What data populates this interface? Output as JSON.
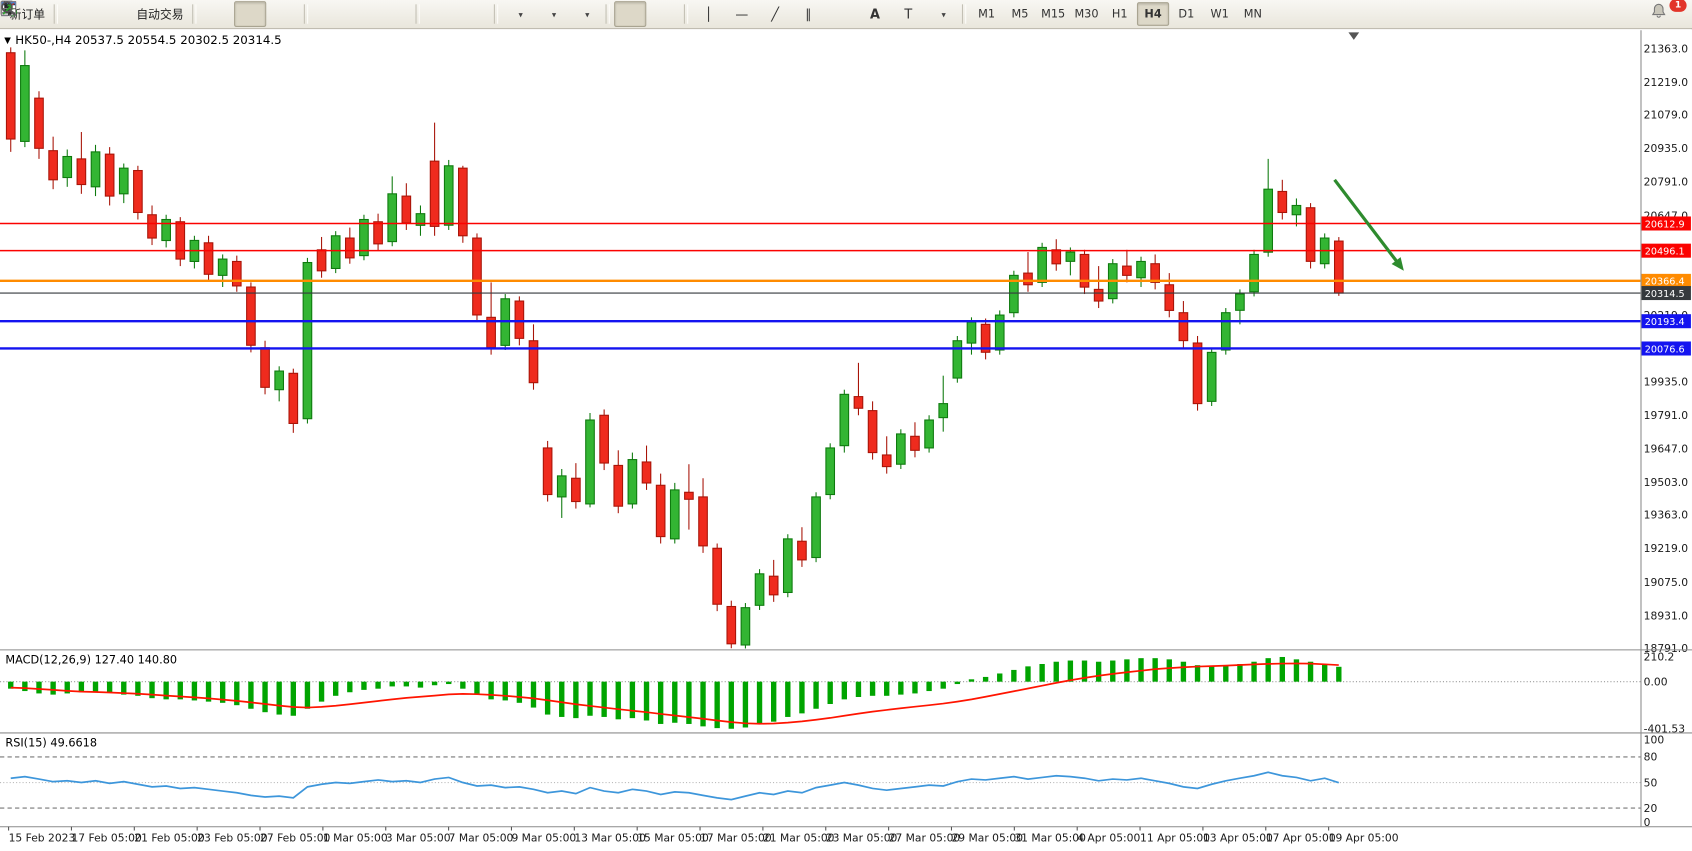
{
  "toolbar": {
    "new_order_label": "新订单",
    "autotrade_label": "自动交易",
    "timeframes": [
      {
        "label": "M1",
        "active": false
      },
      {
        "label": "M5",
        "active": false
      },
      {
        "label": "M15",
        "active": false
      },
      {
        "label": "M30",
        "active": false
      },
      {
        "label": "H1",
        "active": false
      },
      {
        "label": "H4",
        "active": true
      },
      {
        "label": "D1",
        "active": false
      },
      {
        "label": "W1",
        "active": false
      },
      {
        "label": "MN",
        "active": false
      }
    ],
    "notification_badge": "1"
  },
  "chart": {
    "title": "HK50-,H4 20537.5 20554.5 20302.5 20314.5",
    "symbol": "HK50-",
    "period": "H4"
  },
  "chart_data": {
    "type": "candlestick",
    "title": "HK50-,H4",
    "ohlc_display": {
      "open": "20537.5",
      "high": "20554.5",
      "low": "20302.5",
      "close": "20314.5"
    },
    "price_axis": {
      "max": 21363.0,
      "min": 18791.0,
      "ticks": [
        "21363.0",
        "21219.0",
        "21079.0",
        "20935.0",
        "20791.0",
        "20647.0",
        "20503.0",
        "20363.0",
        "20219.0",
        "20075.0",
        "19935.0",
        "19791.0",
        "19647.0",
        "19503.0",
        "19363.0",
        "19219.0",
        "19075.0",
        "18931.0",
        "18791.0"
      ]
    },
    "colors": {
      "up": "#33b533",
      "up_border": "#0e7a0e",
      "down": "#ef2b1e",
      "down_border": "#a81408",
      "red_line": "#fb0200",
      "orange_line": "#ff8b00",
      "blue_line": "#1414f0",
      "current_line": "#4a4f54",
      "arrow": "#2e8b2e"
    },
    "horizontal_lines": [
      {
        "price": 20612.9,
        "label": "20612.9",
        "color": "#fb0200",
        "width": 1.4,
        "current": false
      },
      {
        "price": 20496.1,
        "label": "20496.1",
        "color": "#fb0200",
        "width": 1.4,
        "current": false
      },
      {
        "price": 20366.4,
        "label": "20366.4",
        "color": "#ff8b00",
        "width": 2.2,
        "current": false
      },
      {
        "price": 20193.4,
        "label": "20193.4",
        "color": "#1414f0",
        "width": 2.2,
        "current": false
      },
      {
        "price": 20076.6,
        "label": "20076.6",
        "color": "#1414f0",
        "width": 2.2,
        "current": false
      },
      {
        "price": 20314.5,
        "label": "20314.5",
        "color": "#35393d",
        "width": 1.0,
        "current": true
      }
    ],
    "annotations": [
      {
        "type": "arrow",
        "from_bar": 93.7,
        "from_price": 20800,
        "to_bar": 98.6,
        "to_price": 20410,
        "color": "#2e8b2e"
      }
    ],
    "candles": [
      [
        21345,
        21368,
        20920,
        20975
      ],
      [
        20965,
        21355,
        20940,
        21290
      ],
      [
        21150,
        21180,
        20890,
        20935
      ],
      [
        20925,
        20985,
        20760,
        20800
      ],
      [
        20810,
        20930,
        20770,
        20900
      ],
      [
        20890,
        21005,
        20740,
        20780
      ],
      [
        20770,
        20950,
        20730,
        20920
      ],
      [
        20910,
        20940,
        20690,
        20730
      ],
      [
        20740,
        20870,
        20700,
        20850
      ],
      [
        20840,
        20860,
        20630,
        20660
      ],
      [
        20650,
        20690,
        20520,
        20550
      ],
      [
        20540,
        20650,
        20510,
        20630
      ],
      [
        20620,
        20640,
        20430,
        20460
      ],
      [
        20450,
        20560,
        20420,
        20540
      ],
      [
        20530,
        20560,
        20370,
        20395
      ],
      [
        20390,
        20480,
        20340,
        20460
      ],
      [
        20450,
        20475,
        20320,
        20345
      ],
      [
        20340,
        20360,
        20060,
        20090
      ],
      [
        20080,
        20110,
        19880,
        19910
      ],
      [
        19900,
        20000,
        19850,
        19980
      ],
      [
        19970,
        19990,
        19715,
        19755
      ],
      [
        19775,
        20465,
        19755,
        20445
      ],
      [
        20500,
        20555,
        20380,
        20410
      ],
      [
        20420,
        20580,
        20400,
        20560
      ],
      [
        20550,
        20595,
        20440,
        20465
      ],
      [
        20475,
        20650,
        20455,
        20630
      ],
      [
        20620,
        20655,
        20495,
        20525
      ],
      [
        20535,
        20815,
        20515,
        20740
      ],
      [
        20730,
        20785,
        20585,
        20615
      ],
      [
        20605,
        20690,
        20560,
        20655
      ],
      [
        20880,
        21045,
        20560,
        20600
      ],
      [
        20605,
        20885,
        20585,
        20860
      ],
      [
        20850,
        20860,
        20530,
        20560
      ],
      [
        20550,
        20570,
        20190,
        20220
      ],
      [
        20210,
        20360,
        20050,
        20080
      ],
      [
        20090,
        20310,
        20070,
        20290
      ],
      [
        20280,
        20300,
        20090,
        20120
      ],
      [
        20110,
        20180,
        19900,
        19930
      ],
      [
        19650,
        19680,
        19420,
        19450
      ],
      [
        19440,
        19560,
        19350,
        19530
      ],
      [
        19520,
        19585,
        19390,
        19420
      ],
      [
        19410,
        19800,
        19395,
        19770
      ],
      [
        19790,
        19815,
        19555,
        19585
      ],
      [
        19575,
        19640,
        19370,
        19400
      ],
      [
        19410,
        19630,
        19390,
        19600
      ],
      [
        19590,
        19660,
        19470,
        19500
      ],
      [
        19490,
        19540,
        19240,
        19270
      ],
      [
        19260,
        19500,
        19240,
        19470
      ],
      [
        19460,
        19580,
        19300,
        19430
      ],
      [
        19440,
        19520,
        19200,
        19230
      ],
      [
        19220,
        19240,
        18950,
        18980
      ],
      [
        18970,
        18995,
        18791,
        18810
      ],
      [
        18805,
        18985,
        18790,
        18965
      ],
      [
        18975,
        19130,
        18955,
        19110
      ],
      [
        19100,
        19170,
        18990,
        19020
      ],
      [
        19030,
        19280,
        19010,
        19260
      ],
      [
        19250,
        19310,
        19140,
        19170
      ],
      [
        19180,
        19460,
        19160,
        19440
      ],
      [
        19450,
        19670,
        19430,
        19650
      ],
      [
        19660,
        19900,
        19630,
        19880
      ],
      [
        19870,
        20015,
        19790,
        19820
      ],
      [
        19810,
        19850,
        19600,
        19630
      ],
      [
        19620,
        19700,
        19540,
        19570
      ],
      [
        19580,
        19730,
        19560,
        19710
      ],
      [
        19700,
        19760,
        19610,
        19640
      ],
      [
        19650,
        19790,
        19630,
        19770
      ],
      [
        19780,
        19960,
        19720,
        19840
      ],
      [
        19950,
        20130,
        19930,
        20110
      ],
      [
        20100,
        20210,
        20050,
        20190
      ],
      [
        20180,
        20205,
        20030,
        20060
      ],
      [
        20070,
        20240,
        20050,
        20220
      ],
      [
        20230,
        20410,
        20210,
        20390
      ],
      [
        20400,
        20490,
        20320,
        20350
      ],
      [
        20360,
        20530,
        20340,
        20510
      ],
      [
        20500,
        20545,
        20410,
        20440
      ],
      [
        20450,
        20510,
        20390,
        20490
      ],
      [
        20480,
        20500,
        20310,
        20340
      ],
      [
        20330,
        20430,
        20250,
        20280
      ],
      [
        20290,
        20460,
        20270,
        20440
      ],
      [
        20430,
        20500,
        20360,
        20390
      ],
      [
        20380,
        20470,
        20340,
        20450
      ],
      [
        20440,
        20480,
        20330,
        20360
      ],
      [
        20350,
        20400,
        20210,
        20240
      ],
      [
        20230,
        20280,
        20080,
        20110
      ],
      [
        20100,
        20130,
        19810,
        19840
      ],
      [
        19850,
        20080,
        19830,
        20060
      ],
      [
        20070,
        20250,
        20050,
        20230
      ],
      [
        20240,
        20330,
        20180,
        20310
      ],
      [
        20320,
        20500,
        20300,
        20480
      ],
      [
        20490,
        20890,
        20470,
        20760
      ],
      [
        20750,
        20800,
        20630,
        20660
      ],
      [
        20650,
        20720,
        20600,
        20690
      ],
      [
        20680,
        20700,
        20420,
        20450
      ],
      [
        20440,
        20570,
        20420,
        20550
      ],
      [
        20537.5,
        20554.5,
        20302.5,
        20314.5
      ]
    ],
    "time_axis_ticks": [
      "15 Feb 2023",
      "17 Feb 05:00",
      "21 Feb 05:00",
      "23 Feb 05:00",
      "27 Feb 05:00",
      "1 Mar 05:00",
      "3 Mar 05:00",
      "7 Mar 05:00",
      "9 Mar 05:00",
      "13 Mar 05:00",
      "15 Mar 05:00",
      "17 Mar 05:00",
      "21 Mar 05:00",
      "23 Mar 05:00",
      "27 Mar 05:00",
      "29 Mar 05:00",
      "31 Mar 05:00",
      "4 Apr 05:00",
      "11 Apr 05:00",
      "13 Apr 05:00",
      "17 Apr 05:00",
      "19 Apr 05:00"
    ],
    "macd": {
      "label": "MACD(12,26,9) 127.40 140.80",
      "params": "12,26,9",
      "main_value": "127.40",
      "signal_value": "140.80",
      "axis_ticks": [
        "210.2",
        "0.00",
        "-401.53"
      ],
      "axis_max": 210.2,
      "axis_min": -401.53,
      "colors": {
        "histogram": "#00a400",
        "signal": "#ff1400"
      },
      "histogram": [
        -60,
        -80,
        -100,
        -110,
        -100,
        -90,
        -85,
        -95,
        -110,
        -120,
        -140,
        -150,
        -150,
        -160,
        -170,
        -180,
        -200,
        -230,
        -260,
        -280,
        -290,
        -230,
        -170,
        -120,
        -90,
        -70,
        -60,
        -40,
        -40,
        -50,
        -30,
        -20,
        -60,
        -110,
        -150,
        -160,
        -180,
        -220,
        -280,
        -300,
        -310,
        -290,
        -300,
        -320,
        -310,
        -330,
        -360,
        -350,
        -360,
        -380,
        -395,
        -400,
        -390,
        -360,
        -340,
        -300,
        -270,
        -230,
        -190,
        -150,
        -130,
        -120,
        -120,
        -110,
        -100,
        -80,
        -60,
        -20,
        20,
        40,
        70,
        100,
        130,
        150,
        170,
        180,
        180,
        170,
        180,
        190,
        200,
        200,
        190,
        170,
        140,
        130,
        140,
        150,
        170,
        200,
        210,
        190,
        170,
        150,
        127
      ],
      "signal": [
        -50,
        -55,
        -62,
        -70,
        -78,
        -84,
        -88,
        -92,
        -97,
        -103,
        -110,
        -118,
        -126,
        -134,
        -142,
        -152,
        -163,
        -176,
        -190,
        -204,
        -216,
        -220,
        -215,
        -205,
        -192,
        -178,
        -164,
        -150,
        -138,
        -128,
        -118,
        -108,
        -104,
        -106,
        -112,
        -120,
        -130,
        -142,
        -158,
        -175,
        -192,
        -206,
        -220,
        -234,
        -247,
        -260,
        -274,
        -288,
        -302,
        -316,
        -330,
        -344,
        -354,
        -358,
        -356,
        -349,
        -338,
        -324,
        -308,
        -290,
        -272,
        -255,
        -240,
        -226,
        -213,
        -200,
        -186,
        -170,
        -150,
        -128,
        -105,
        -82,
        -58,
        -34,
        -10,
        12,
        32,
        50,
        66,
        80,
        94,
        106,
        116,
        123,
        128,
        132,
        137,
        142,
        147,
        151,
        154,
        155,
        153,
        148,
        141
      ]
    },
    "rsi": {
      "label": "RSI(15) 49.6618",
      "value": "49.6618",
      "axis_ticks": [
        "100",
        "80",
        "50",
        "20",
        "0"
      ],
      "levels": [
        80,
        50,
        20
      ],
      "color": "#3d96db",
      "values": [
        55,
        57,
        54,
        51,
        52,
        50,
        52,
        49,
        51,
        48,
        45,
        46,
        43,
        44,
        42,
        40,
        38,
        35,
        33,
        34,
        32,
        45,
        48,
        50,
        49,
        51,
        53,
        51,
        52,
        50,
        54,
        56,
        50,
        46,
        47,
        44,
        45,
        42,
        38,
        40,
        37,
        44,
        40,
        38,
        42,
        40,
        36,
        39,
        38,
        35,
        32,
        30,
        34,
        38,
        36,
        40,
        38,
        44,
        47,
        50,
        47,
        43,
        41,
        43,
        45,
        47,
        46,
        51,
        54,
        53,
        55,
        57,
        54,
        56,
        58,
        57,
        55,
        52,
        54,
        53,
        55,
        52,
        49,
        45,
        43,
        48,
        52,
        55,
        58,
        62,
        58,
        56,
        52,
        55,
        49.7
      ]
    }
  }
}
